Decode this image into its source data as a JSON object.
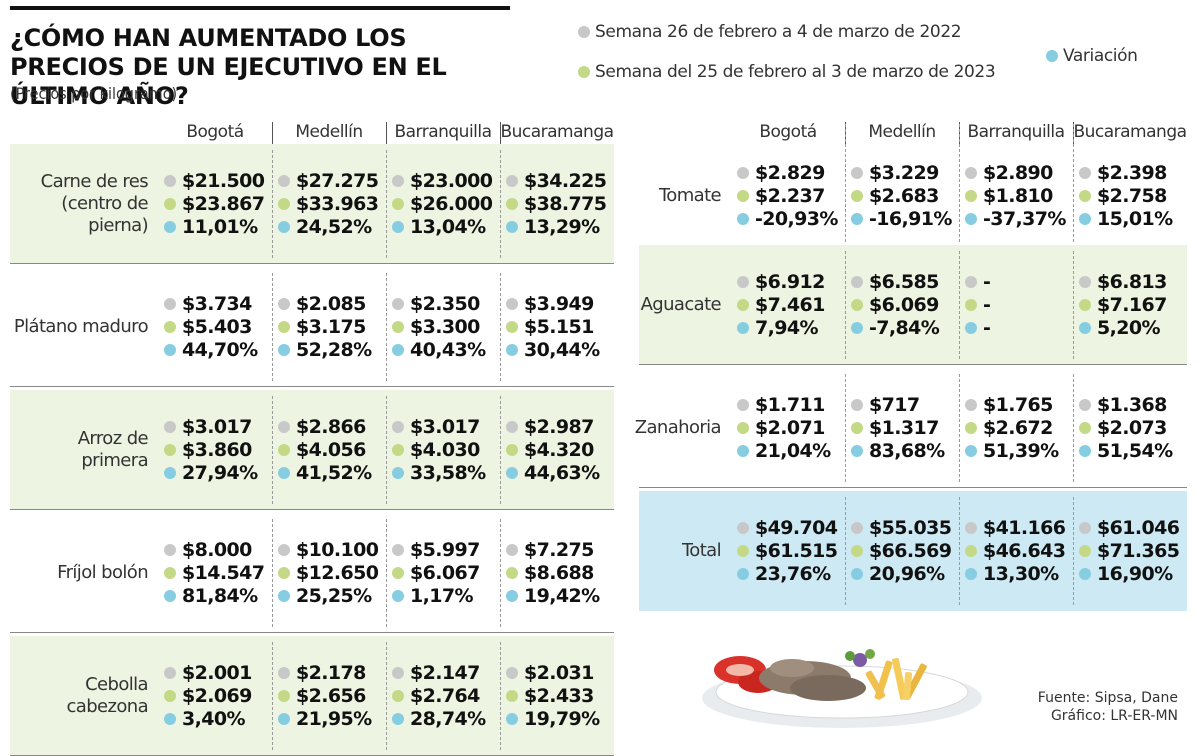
{
  "header": {
    "title": "¿CÓMO HAN AUMENTADO LOS PRECIOS DE UN EJECUTIVO EN EL ÚLTIMO AÑO?",
    "subtitle": "(Precios por kilogramo)"
  },
  "legend": {
    "week_2022": "Semana 26 de febrero a 4 de marzo de 2022",
    "week_2023": "Semana del 25 de febrero al 3 de marzo de 2023",
    "variation": "Variación",
    "colors": {
      "week_2022": "#c8c8c8",
      "week_2023": "#c3d986",
      "variation": "#86cde2"
    }
  },
  "columns": [
    "Bogotá",
    "Medellín",
    "Barranquilla",
    "Bucaramanga"
  ],
  "source": {
    "line1": "Fuente: Sipsa, Dane",
    "line2": "Gráfico: LR-ER-MN"
  },
  "chart_data": {
    "type": "table",
    "title": "¿CÓMO HAN AUMENTADO LOS PRECIOS DE UN EJECUTIVO EN EL ÚLTIMO AÑO?",
    "subtitle": "(Precios por kilogramo)",
    "columns": [
      "Bogotá",
      "Medellín",
      "Barranquilla",
      "Bucaramanga"
    ],
    "series": [
      "Semana 26 de febrero a 4 de marzo de 2022",
      "Semana del 25 de febrero al 3 de marzo de 2023",
      "Variación"
    ],
    "left_rows": [
      {
        "product": "Carne de res (centro de pierna)",
        "shaded": true,
        "values": [
          [
            "$21.500",
            "$23.867",
            "11,01%"
          ],
          [
            "$27.275",
            "$33.963",
            "24,52%"
          ],
          [
            "$23.000",
            "$26.000",
            "13,04%"
          ],
          [
            "$34.225",
            "$38.775",
            "13,29%"
          ]
        ]
      },
      {
        "product": "Plátano maduro",
        "shaded": false,
        "values": [
          [
            "$3.734",
            "$5.403",
            "44,70%"
          ],
          [
            "$2.085",
            "$3.175",
            "52,28%"
          ],
          [
            "$2.350",
            "$3.300",
            "40,43%"
          ],
          [
            "$3.949",
            "$5.151",
            "30,44%"
          ]
        ]
      },
      {
        "product": "Arroz de primera",
        "shaded": true,
        "values": [
          [
            "$3.017",
            "$3.860",
            "27,94%"
          ],
          [
            "$2.866",
            "$4.056",
            "41,52%"
          ],
          [
            "$3.017",
            "$4.030",
            "33,58%"
          ],
          [
            "$2.987",
            "$4.320",
            "44,63%"
          ]
        ]
      },
      {
        "product": "Fríjol bolón",
        "shaded": false,
        "values": [
          [
            "$8.000",
            "$14.547",
            "81,84%"
          ],
          [
            "$10.100",
            "$12.650",
            "25,25%"
          ],
          [
            "$5.997",
            "$6.067",
            "1,17%"
          ],
          [
            "$7.275",
            "$8.688",
            "19,42%"
          ]
        ]
      },
      {
        "product": "Cebolla cabezona",
        "shaded": true,
        "values": [
          [
            "$2.001",
            "$2.069",
            "3,40%"
          ],
          [
            "$2.178",
            "$2.656",
            "21,95%"
          ],
          [
            "$2.147",
            "$2.764",
            "28,74%"
          ],
          [
            "$2.031",
            "$2.433",
            "19,79%"
          ]
        ]
      }
    ],
    "right_rows": [
      {
        "product": "Tomate",
        "shaded": false,
        "values": [
          [
            "$2.829",
            "$2.237",
            "-20,93%"
          ],
          [
            "$3.229",
            "$2.683",
            "-16,91%"
          ],
          [
            "$2.890",
            "$1.810",
            "-37,37%"
          ],
          [
            "$2.398",
            "$2.758",
            "15,01%"
          ]
        ]
      },
      {
        "product": "Aguacate",
        "shaded": true,
        "values": [
          [
            "$6.912",
            "$7.461",
            "7,94%"
          ],
          [
            "$6.585",
            "$6.069",
            "-7,84%"
          ],
          [
            "-",
            "-",
            "-"
          ],
          [
            "$6.813",
            "$7.167",
            "5,20%"
          ]
        ]
      },
      {
        "product": "Zanahoria",
        "shaded": false,
        "values": [
          [
            "$1.711",
            "$2.071",
            "21,04%"
          ],
          [
            "$717",
            "$1.317",
            "83,68%"
          ],
          [
            "$1.765",
            "$2.672",
            "51,39%"
          ],
          [
            "$1.368",
            "$2.073",
            "51,54%"
          ]
        ]
      },
      {
        "product": "Total",
        "total": true,
        "values": [
          [
            "$49.704",
            "$61.515",
            "23,76%"
          ],
          [
            "$55.035",
            "$66.569",
            "20,96%"
          ],
          [
            "$41.166",
            "$46.643",
            "13,30%"
          ],
          [
            "$61.046",
            "$71.365",
            "16,90%"
          ]
        ]
      }
    ]
  }
}
